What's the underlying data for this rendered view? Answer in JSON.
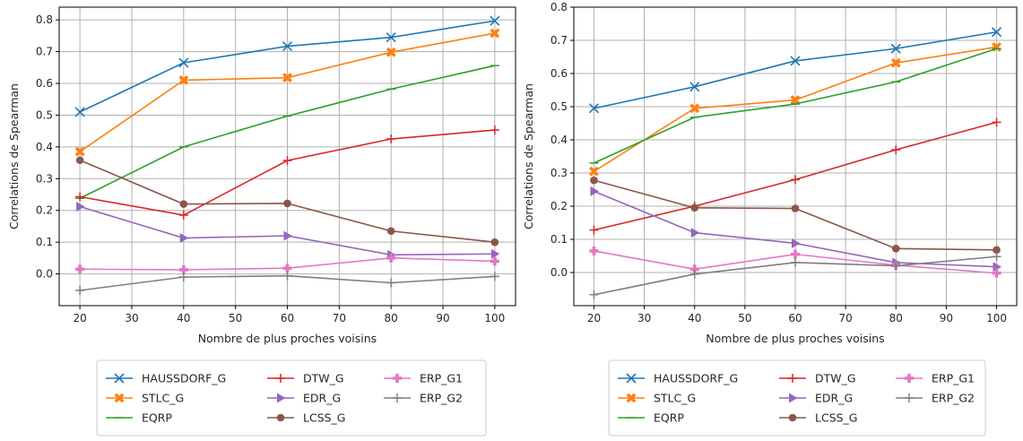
{
  "chart_data": [
    {
      "type": "line",
      "xlabel": "Nombre de plus proches voisins",
      "ylabel": "Correlations de Spearman",
      "xlim": [
        16,
        104
      ],
      "ylim": [
        -0.1,
        0.84
      ],
      "xticks": [
        20,
        30,
        40,
        50,
        60,
        70,
        80,
        90,
        100
      ],
      "yticks": [
        0.0,
        0.1,
        0.2,
        0.3,
        0.4,
        0.5,
        0.6,
        0.7,
        0.8
      ],
      "x": [
        20,
        40,
        60,
        80,
        100
      ],
      "grid": true,
      "legend_position": "below",
      "series": [
        {
          "name": "HAUSSDORF_G",
          "color": "#1f77b4",
          "marker": "x",
          "values": [
            0.51,
            0.665,
            0.717,
            0.745,
            0.797
          ]
        },
        {
          "name": "STLC_G",
          "color": "#ff7f0e",
          "marker": "X",
          "values": [
            0.385,
            0.61,
            0.618,
            0.698,
            0.758
          ]
        },
        {
          "name": "EQRP",
          "color": "#2ca02c",
          "marker": "_",
          "values": [
            0.238,
            0.4,
            0.497,
            0.582,
            0.656
          ]
        },
        {
          "name": "DTW_G",
          "color": "#d62728",
          "marker": "+",
          "values": [
            0.243,
            0.185,
            0.357,
            0.425,
            0.453
          ]
        },
        {
          "name": "EDR_G",
          "color": "#9467bd",
          "marker": ">",
          "values": [
            0.212,
            0.113,
            0.12,
            0.06,
            0.063
          ]
        },
        {
          "name": "LCSS_G",
          "color": "#8c564b",
          "marker": "o",
          "values": [
            0.358,
            0.22,
            0.222,
            0.135,
            0.1
          ]
        },
        {
          "name": "ERP_G1",
          "color": "#e377c2",
          "marker": "P",
          "values": [
            0.015,
            0.013,
            0.018,
            0.05,
            0.04
          ]
        },
        {
          "name": "ERP_G2",
          "color": "#7f7f7f",
          "marker": "+",
          "values": [
            -0.052,
            -0.01,
            -0.006,
            -0.028,
            -0.008
          ]
        }
      ]
    },
    {
      "type": "line",
      "xlabel": "Nombre de plus proches voisins",
      "ylabel": "Correlations de Spearman",
      "xlim": [
        16,
        104
      ],
      "ylim": [
        -0.1,
        0.8
      ],
      "xticks": [
        20,
        30,
        40,
        50,
        60,
        70,
        80,
        90,
        100
      ],
      "yticks": [
        0.0,
        0.1,
        0.2,
        0.3,
        0.4,
        0.5,
        0.6,
        0.7,
        0.8
      ],
      "x": [
        20,
        40,
        60,
        80,
        100
      ],
      "grid": true,
      "legend_position": "below",
      "series": [
        {
          "name": "HAUSSDORF_G",
          "color": "#1f77b4",
          "marker": "x",
          "values": [
            0.495,
            0.56,
            0.638,
            0.675,
            0.725
          ]
        },
        {
          "name": "STLC_G",
          "color": "#ff7f0e",
          "marker": "X",
          "values": [
            0.305,
            0.495,
            0.52,
            0.632,
            0.68
          ]
        },
        {
          "name": "EQRP",
          "color": "#2ca02c",
          "marker": "_",
          "values": [
            0.33,
            0.468,
            0.508,
            0.575,
            0.675
          ]
        },
        {
          "name": "DTW_G",
          "color": "#d62728",
          "marker": "+",
          "values": [
            0.128,
            0.2,
            0.28,
            0.37,
            0.453
          ]
        },
        {
          "name": "EDR_G",
          "color": "#9467bd",
          "marker": ">",
          "values": [
            0.245,
            0.12,
            0.088,
            0.03,
            0.017
          ]
        },
        {
          "name": "LCSS_G",
          "color": "#8c564b",
          "marker": "o",
          "values": [
            0.278,
            0.195,
            0.193,
            0.072,
            0.068
          ]
        },
        {
          "name": "ERP_G1",
          "color": "#e377c2",
          "marker": "P",
          "values": [
            0.065,
            0.01,
            0.055,
            0.022,
            -0.002
          ]
        },
        {
          "name": "ERP_G2",
          "color": "#7f7f7f",
          "marker": "+",
          "values": [
            -0.067,
            -0.005,
            0.03,
            0.02,
            0.048
          ]
        }
      ]
    }
  ]
}
